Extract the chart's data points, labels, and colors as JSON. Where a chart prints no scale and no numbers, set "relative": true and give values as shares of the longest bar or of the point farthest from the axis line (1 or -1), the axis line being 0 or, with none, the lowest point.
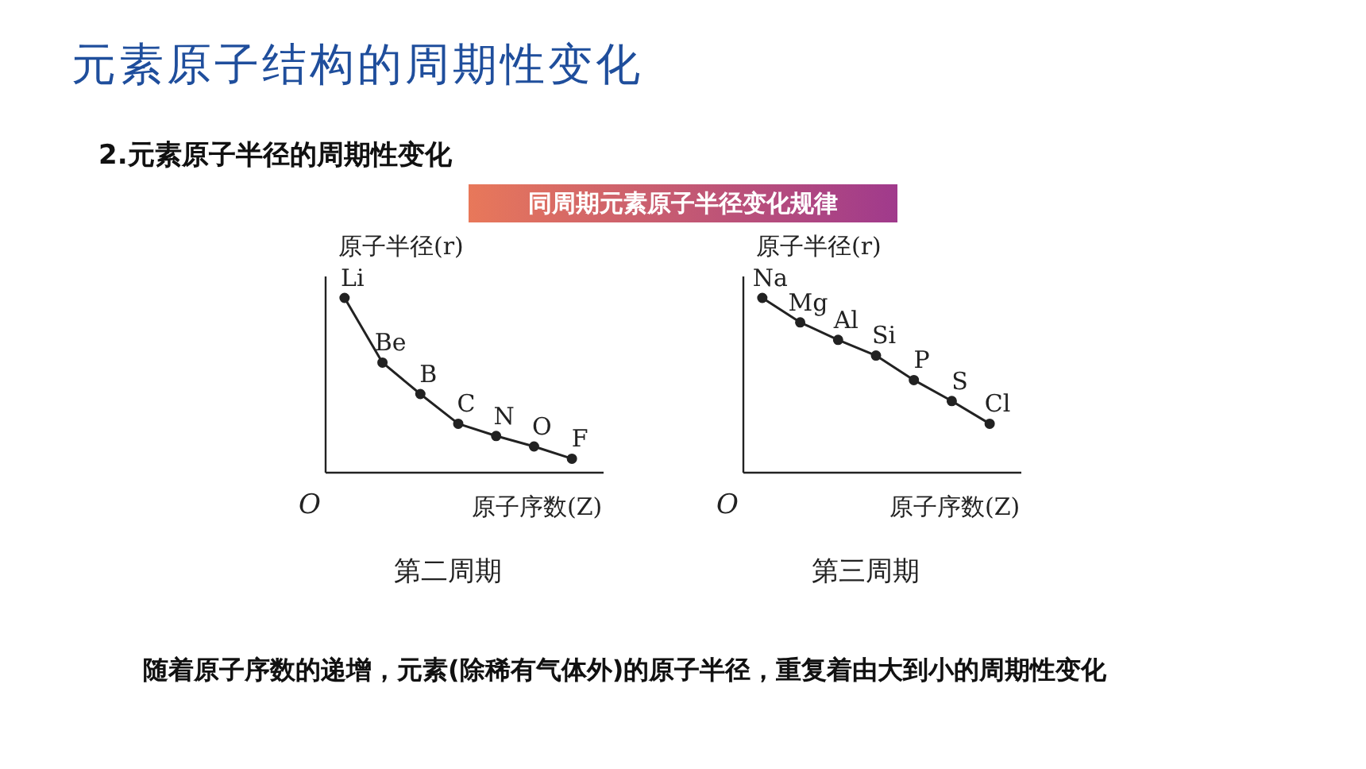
{
  "chart_data": [
    {
      "type": "other",
      "title": "元素原子结构的周期性变化",
      "subtitle": "2.元素原子半径的周期性变化",
      "annotations": [
        "同周期元素原子半径变化规律",
        "随着原子序数的递增，元素(除稀有气体外)的原子半径，重复着由大到小的周期性变化"
      ]
    },
    {
      "type": "line",
      "title": "第二周期",
      "ylabel": "原子半径(r)",
      "xlabel": "原子序数(Z)",
      "annotations": [
        "O"
      ],
      "relative": true,
      "tick_labels": false,
      "legend": false,
      "marker": "circle",
      "line_style": "solid",
      "categories": [
        "Li",
        "Be",
        "B",
        "C",
        "N",
        "O",
        "F"
      ],
      "series": [
        {
          "color": "#222222",
          "values": [
            1,
            0.63,
            0.45,
            0.28,
            0.21,
            0.15,
            0.08
          ]
        }
      ]
    },
    {
      "type": "line",
      "title": "第三周期",
      "ylabel": "原子半径(r)",
      "xlabel": "原子序数(Z)",
      "annotations": [
        "O"
      ],
      "relative": true,
      "tick_labels": false,
      "legend": false,
      "marker": "circle",
      "line_style": "solid",
      "categories": [
        "Na",
        "Mg",
        "Al",
        "Si",
        "P",
        "S",
        "Cl"
      ],
      "series": [
        {
          "color": "#222222",
          "values": [
            1,
            0.86,
            0.76,
            0.67,
            0.53,
            0.41,
            0.28
          ]
        }
      ]
    }
  ]
}
